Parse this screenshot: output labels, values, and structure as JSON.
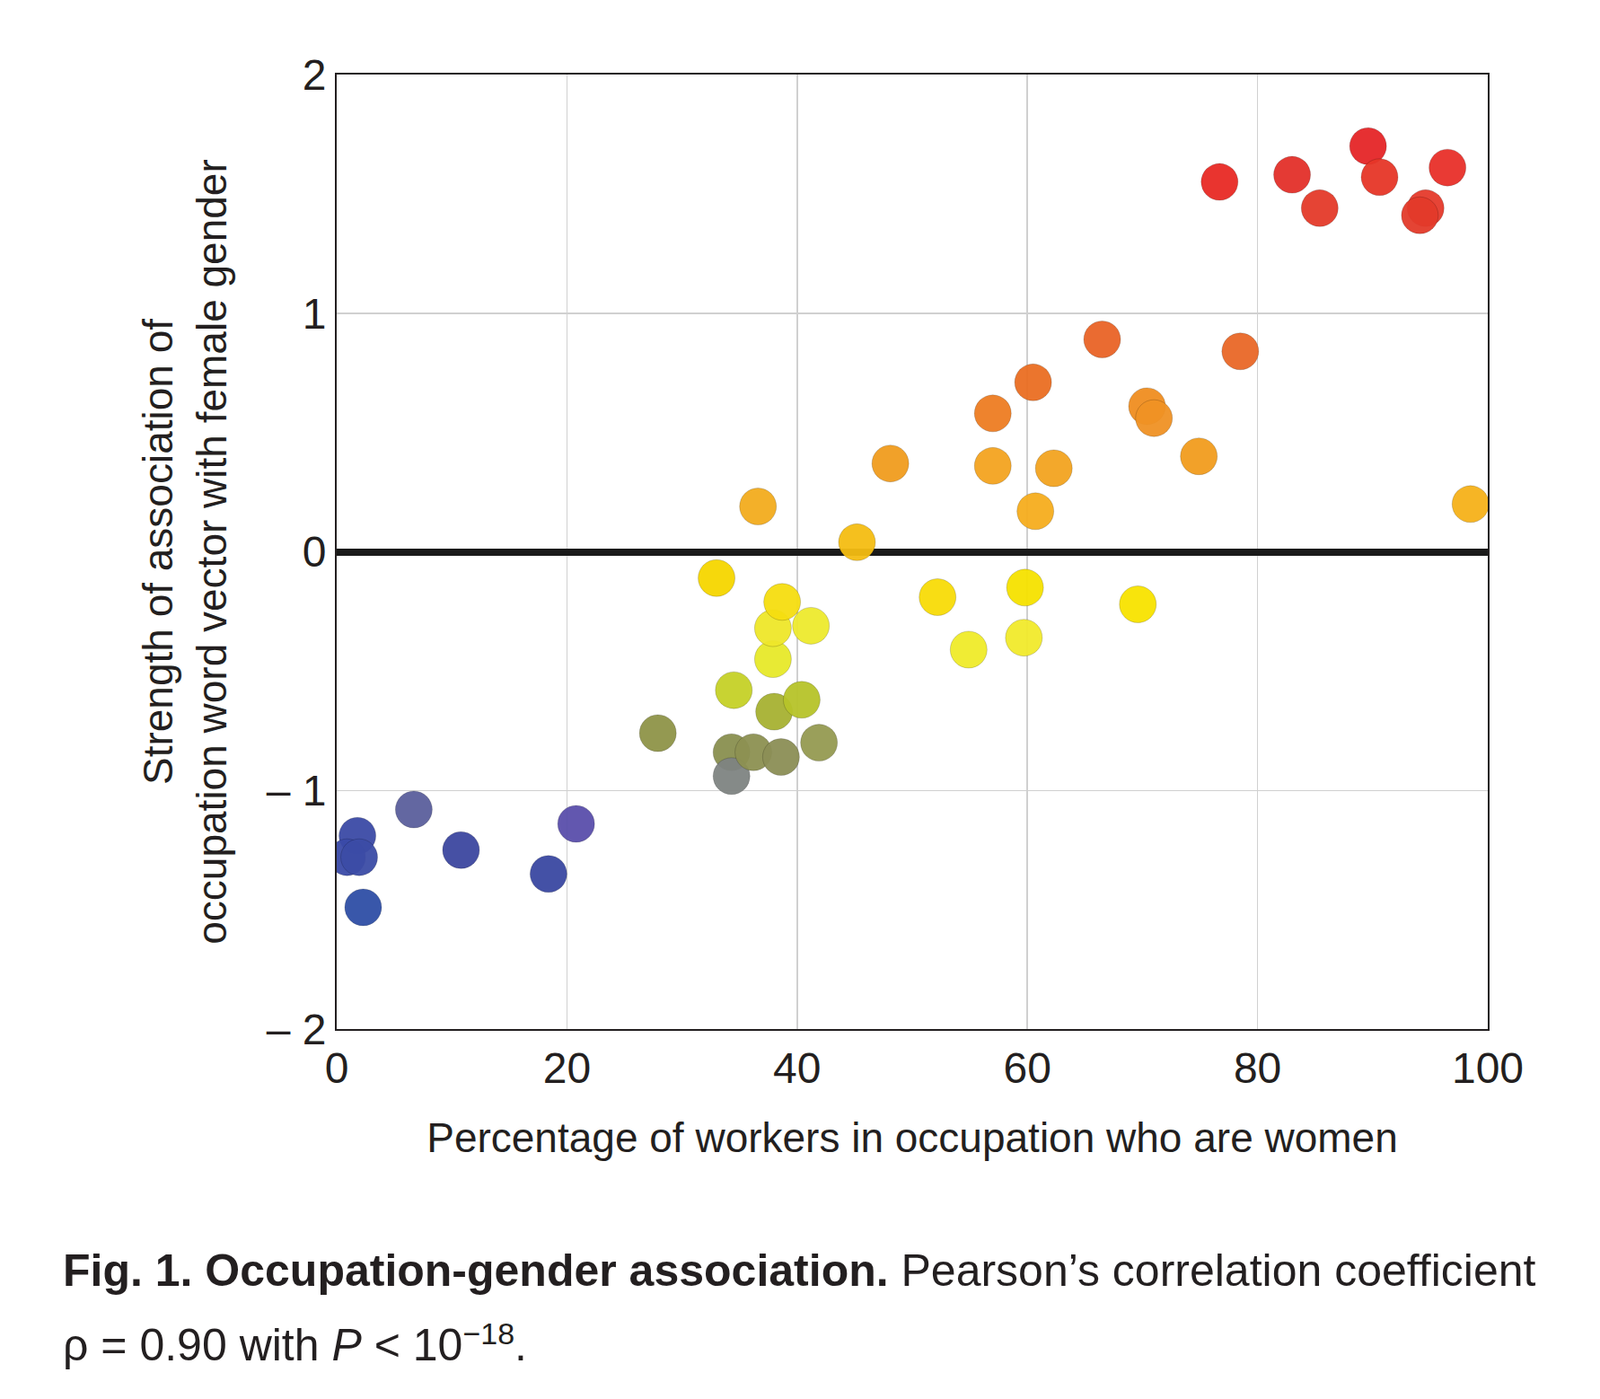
{
  "chart_data": {
    "type": "scatter",
    "x_label": "Percentage of workers in occupation who are women",
    "y_label": [
      "Strength of association of",
      "occupation word vector with female gender"
    ],
    "caption": {
      "bold": "Fig. 1. Occupation-gender association.",
      "text": " Pearson’s correlation coefficient ρ = 0.90 with ",
      "italic": "P",
      "after": " < 10",
      "superscript": "−18",
      "end": "."
    },
    "x": [
      1.8,
      0.9,
      1.95,
      2.3,
      6.7,
      10.8,
      18.4,
      20.8,
      27.9,
      34.3,
      34.3,
      36.2,
      38.6,
      41.9,
      38.0,
      40.4,
      34.5,
      37.9,
      37.9,
      38.7,
      41.2,
      33.0,
      52.2,
      54.9,
      59.8,
      59.7,
      69.6,
      36.6,
      45.2,
      48.1,
      57.0,
      60.7,
      62.3,
      74.9,
      98.5,
      57.0,
      70.4,
      71.0,
      60.5,
      66.5,
      78.5,
      76.7,
      83.0,
      85.4,
      89.6,
      90.6,
      94.6,
      94.1,
      96.5
    ],
    "values": [
      -1.19,
      -1.28,
      -1.28,
      -1.49,
      -1.08,
      -1.25,
      -1.35,
      -1.14,
      -0.76,
      -0.84,
      -0.94,
      -0.84,
      -0.86,
      -0.8,
      -0.67,
      -0.62,
      -0.58,
      -0.45,
      -0.32,
      -0.21,
      -0.31,
      -0.11,
      -0.19,
      -0.41,
      -0.15,
      -0.36,
      -0.22,
      0.19,
      0.04,
      0.37,
      0.36,
      0.17,
      0.35,
      0.4,
      0.2,
      0.58,
      0.61,
      0.56,
      0.71,
      0.89,
      0.84,
      1.55,
      1.58,
      1.44,
      1.7,
      1.57,
      1.44,
      1.41,
      1.61
    ],
    "colors": [
      "#3c4aa6",
      "#3a4aa8",
      "#3c4ca6",
      "#2f4fa6",
      "#5b5f9c",
      "#3d47a0",
      "#3a48a2",
      "#5a4fab",
      "#8f9448",
      "#8a9050",
      "#7f8482",
      "#8d9152",
      "#8c8f56",
      "#959a52",
      "#a7b232",
      "#b7c42a",
      "#c6d128",
      "#e7e92a",
      "#efe72a",
      "#f6de10",
      "#eeea2e",
      "#f6d600",
      "#f8dc08",
      "#f0ec2a",
      "#f6e200",
      "#f2ea2c",
      "#f8e300",
      "#f3ac1e",
      "#f5bd12",
      "#f19c1e",
      "#f4a420",
      "#f6ad1e",
      "#f3a420",
      "#f29d1e",
      "#f6b21a",
      "#ee7d22",
      "#f08e20",
      "#f09224",
      "#ea6e22",
      "#e96426",
      "#e96828",
      "#e82a24",
      "#e3302a",
      "#e43b2a",
      "#e52528",
      "#e63628",
      "#e53a2c",
      "#e33a2a",
      "#e8302a"
    ],
    "marker": "circle",
    "xlim": [
      0,
      100
    ],
    "ylim": [
      -2,
      2
    ],
    "xticks": [
      0,
      20,
      40,
      60,
      80,
      100
    ],
    "yticks": [
      {
        "value": -2,
        "label": "– 2"
      },
      {
        "value": -1,
        "label": "– 1"
      },
      0,
      1,
      2
    ],
    "grid": true
  }
}
